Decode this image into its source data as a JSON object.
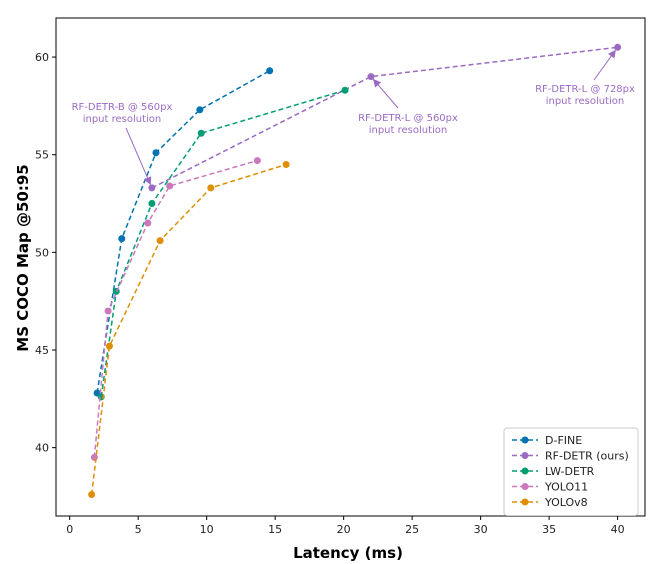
{
  "chart_data": {
    "type": "line",
    "xlabel": "Latency (ms)",
    "ylabel": "MS COCO Map @50:95",
    "xlim": [
      -1,
      42
    ],
    "ylim": [
      36.5,
      62
    ],
    "xticks": [
      0,
      5,
      10,
      15,
      20,
      25,
      30,
      35,
      40
    ],
    "yticks": [
      40,
      45,
      50,
      55,
      60
    ],
    "grid": false,
    "legend_position": "bottom-right",
    "series": [
      {
        "name": "D-FINE",
        "color": "#0173b2",
        "x": [
          2.0,
          3.8,
          6.3,
          9.5,
          14.6
        ],
        "y": [
          42.8,
          50.7,
          55.1,
          57.3,
          59.3
        ]
      },
      {
        "name": "RF-DETR (ours)",
        "color": "#9b6bc4",
        "x": [
          6.0,
          22.0,
          40.0
        ],
        "y": [
          53.3,
          59.0,
          60.5
        ]
      },
      {
        "name": "LW-DETR",
        "color": "#029e73",
        "x": [
          2.3,
          3.4,
          6.0,
          9.6,
          20.1
        ],
        "y": [
          42.6,
          48.0,
          52.5,
          56.1,
          58.3
        ]
      },
      {
        "name": "YOLO11",
        "color": "#cc78bc",
        "x": [
          1.8,
          2.8,
          5.7,
          7.3,
          13.7
        ],
        "y": [
          39.5,
          47.0,
          51.5,
          53.4,
          54.7
        ]
      },
      {
        "name": "YOLOv8",
        "color": "#de8f05",
        "x": [
          1.6,
          2.9,
          6.6,
          10.3,
          15.8
        ],
        "y": [
          37.6,
          45.2,
          50.6,
          53.3,
          54.5
        ]
      }
    ],
    "annotations": [
      {
        "lines": [
          "RF-DETR-B @ 560px",
          "input resolution"
        ],
        "point": [
          6.0,
          53.3
        ],
        "color": "#9b6bc4"
      },
      {
        "lines": [
          "RF-DETR-L @ 560px",
          "input resolution"
        ],
        "point": [
          22.0,
          59.0
        ],
        "color": "#9b6bc4"
      },
      {
        "lines": [
          "RF-DETR-L @ 728px",
          "input resolution"
        ],
        "point": [
          40.0,
          60.5
        ],
        "color": "#9b6bc4"
      }
    ]
  }
}
